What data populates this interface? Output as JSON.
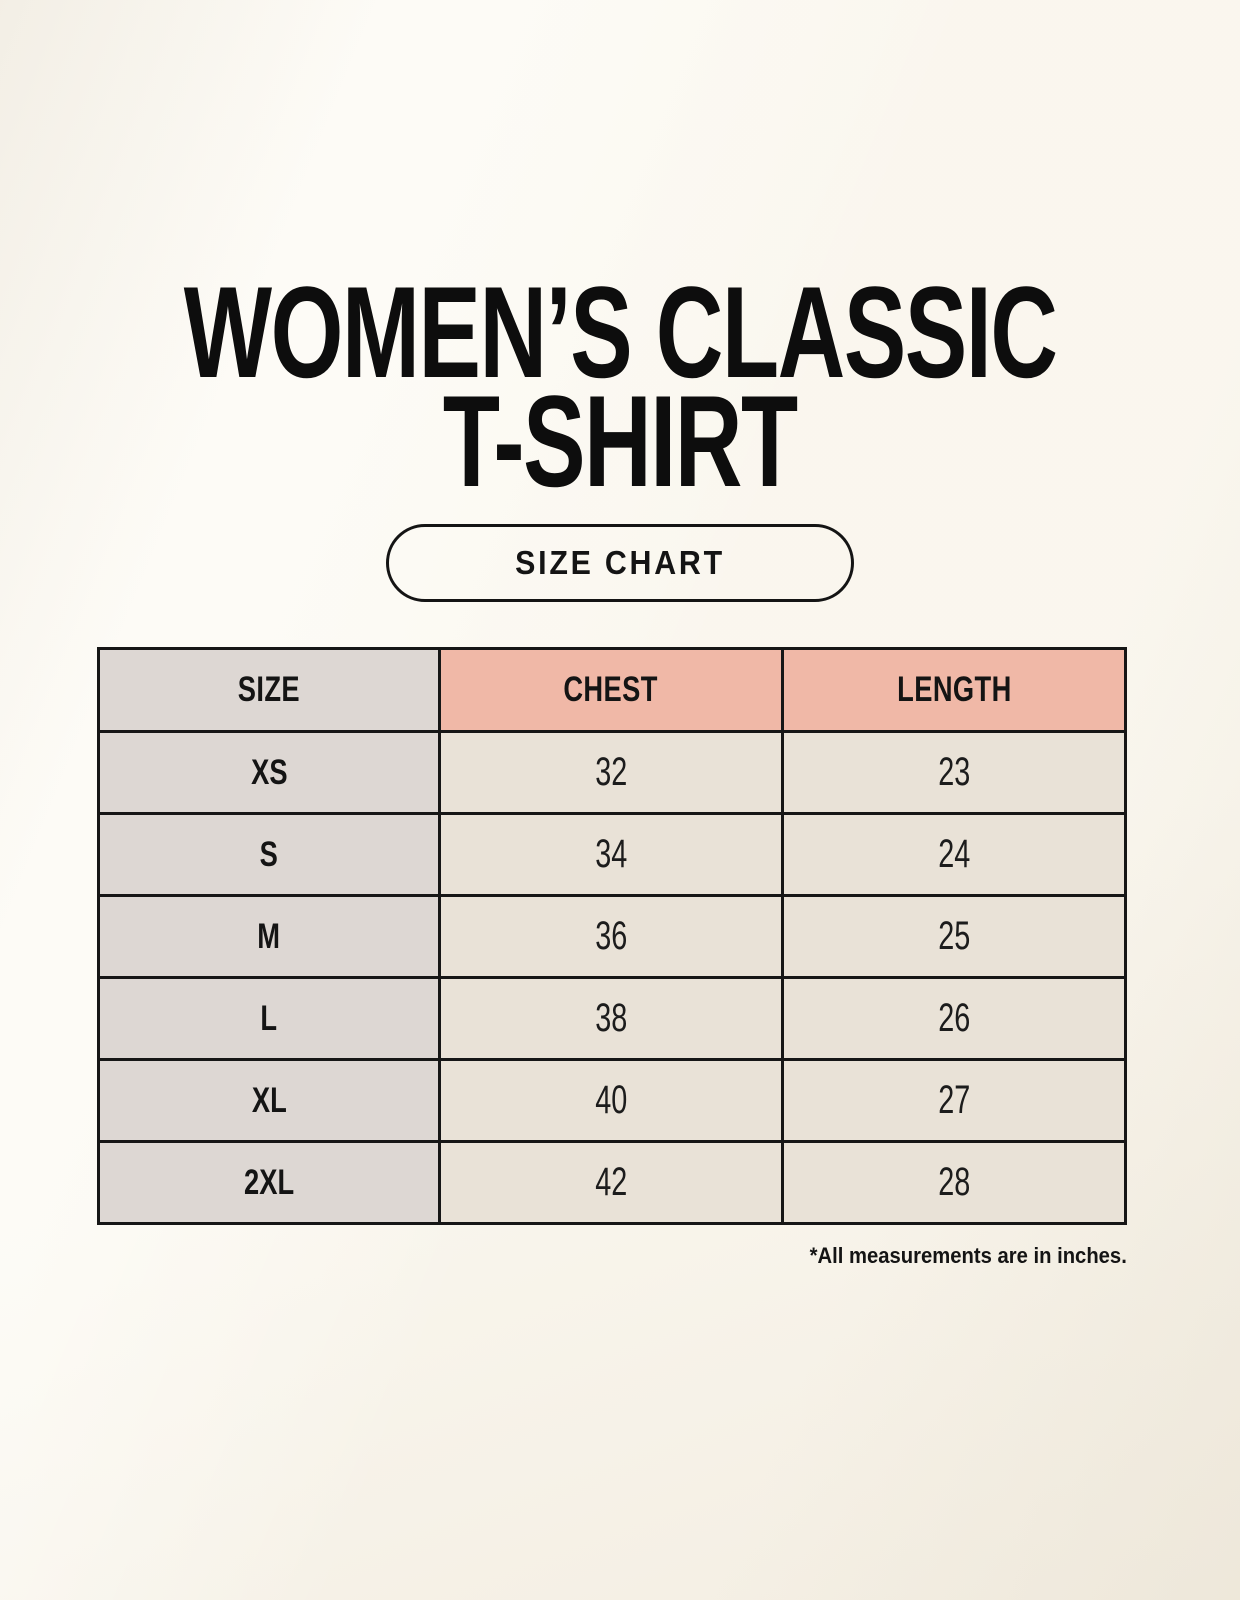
{
  "page": {
    "title_lines": [
      "WOMEN’S CLASSIC",
      "T-SHIRT"
    ],
    "size_chart_button_label": "SIZE CHART",
    "footnote": "*All measurements are in inches."
  },
  "colors": {
    "background": "#f7f2e8",
    "size_header_bg": "#ddd7d3",
    "measure_header_bg": "#f0b8a7",
    "value_cell_bg": "#e9e2d7",
    "border": "#161616",
    "text": "#141414"
  },
  "table": {
    "headers": [
      "SIZE",
      "CHEST",
      "LENGTH"
    ],
    "rows": [
      {
        "size": "XS",
        "chest": "32",
        "length": "23"
      },
      {
        "size": "S",
        "chest": "34",
        "length": "24"
      },
      {
        "size": "M",
        "chest": "36",
        "length": "25"
      },
      {
        "size": "L",
        "chest": "38",
        "length": "26"
      },
      {
        "size": "XL",
        "chest": "40",
        "length": "27"
      },
      {
        "size": "2XL",
        "chest": "42",
        "length": "28"
      }
    ],
    "units_note": "inches"
  }
}
